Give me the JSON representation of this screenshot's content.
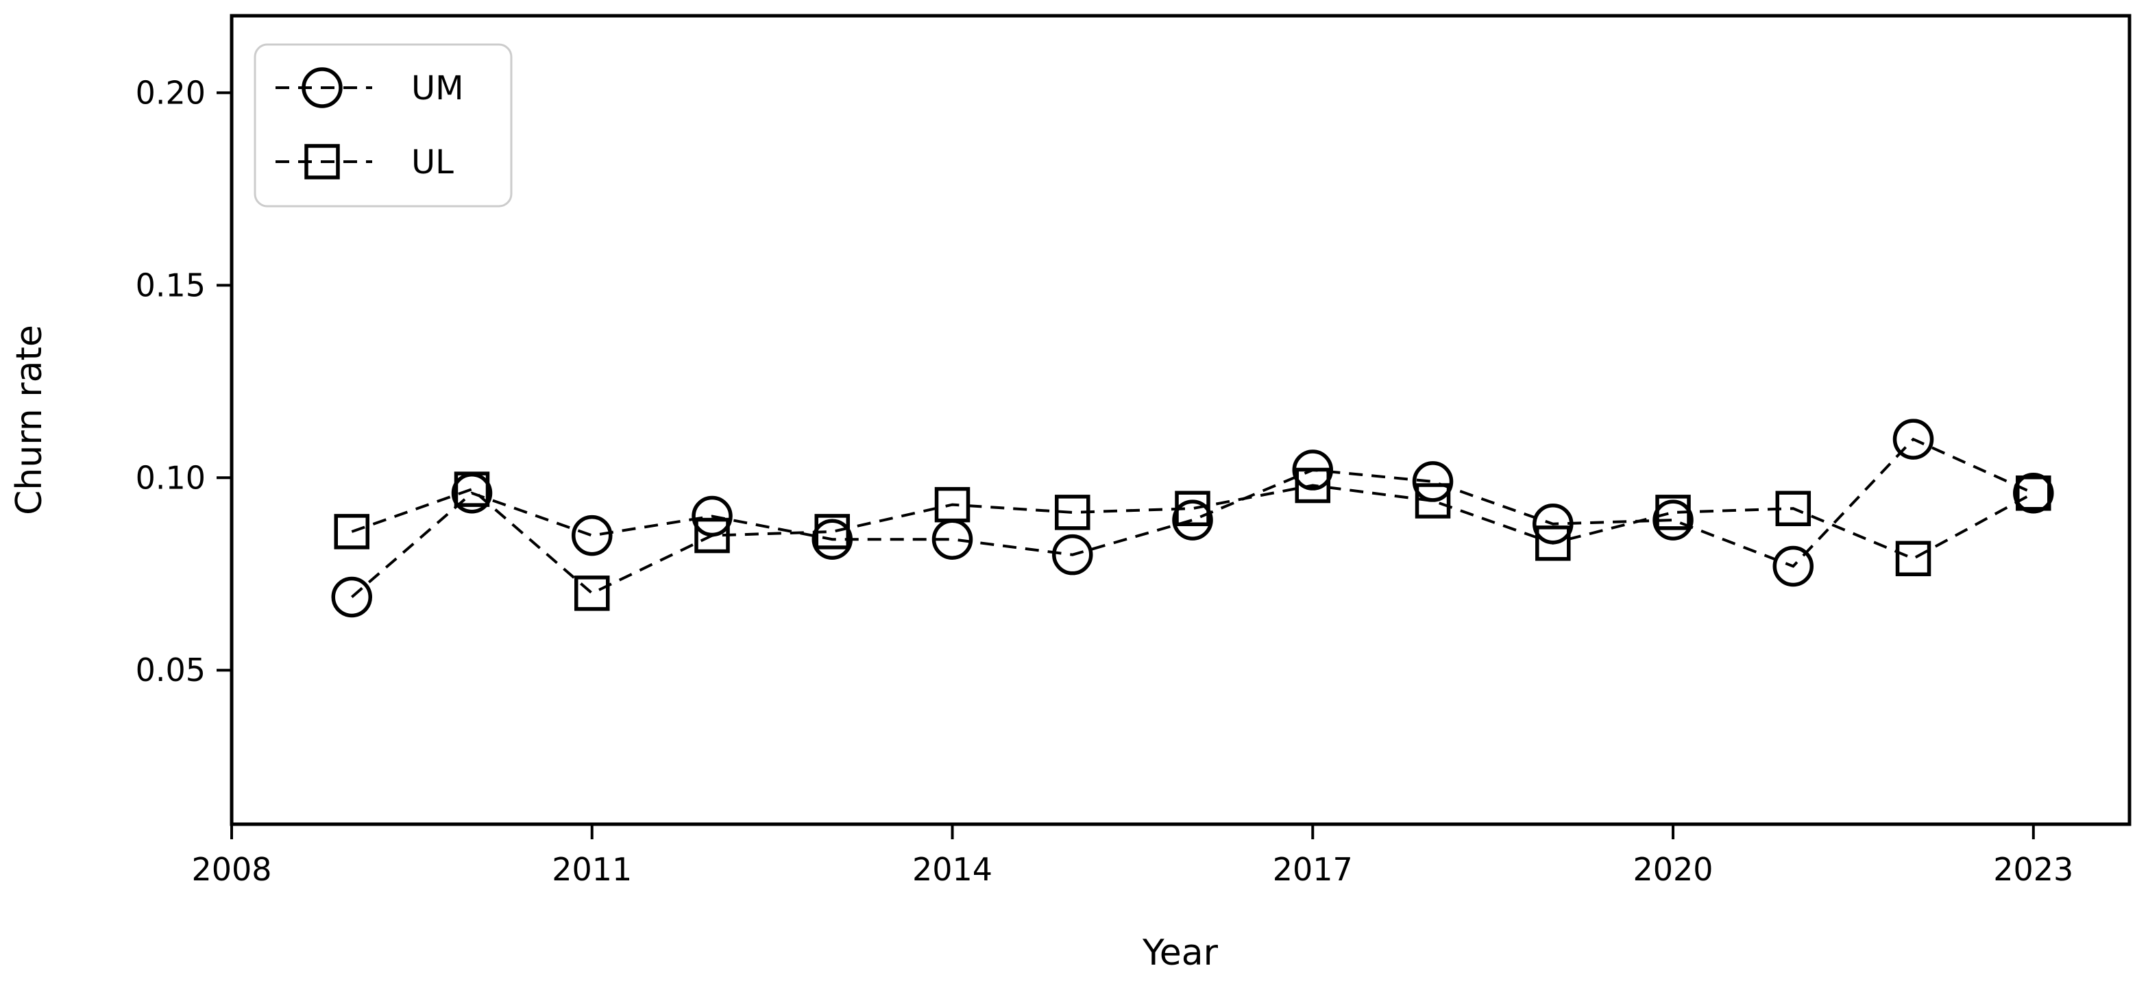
{
  "figure": {
    "background": "#ffffff",
    "frame_color": "#000000",
    "series_color": "#000000",
    "legend_border_color": "#cccccc"
  },
  "chart_data": {
    "type": "line",
    "title": "",
    "xlabel": "Year",
    "ylabel": "Churn rate",
    "x": [
      2009,
      2010,
      2011,
      2012,
      2013,
      2014,
      2015,
      2016,
      2017,
      2018,
      2019,
      2020,
      2021,
      2022,
      2023
    ],
    "series": [
      {
        "name": "UM",
        "marker": "circle",
        "linestyle": "dashed",
        "color": "#000000",
        "values": [
          0.069,
          0.096,
          0.085,
          0.09,
          0.084,
          0.084,
          0.08,
          0.089,
          0.102,
          0.099,
          0.088,
          0.089,
          0.077,
          0.11,
          0.096
        ]
      },
      {
        "name": "UL",
        "marker": "square",
        "linestyle": "dashed",
        "color": "#000000",
        "values": [
          0.086,
          0.097,
          0.07,
          0.085,
          0.086,
          0.093,
          0.091,
          0.092,
          0.098,
          0.094,
          0.083,
          0.091,
          0.092,
          0.079,
          0.096
        ]
      }
    ],
    "xticks": [
      2008,
      2011,
      2014,
      2017,
      2020,
      2023
    ],
    "xtick_labels": [
      "2008",
      "2011",
      "2014",
      "2017",
      "2020",
      "2023"
    ],
    "yticks": [
      0.05,
      0.1,
      0.15,
      0.2
    ],
    "ytick_labels": [
      "0.05",
      "0.10",
      "0.15",
      "0.20"
    ],
    "xlim": [
      2008,
      2023.8
    ],
    "ylim": [
      0.01,
      0.22
    ],
    "grid": false,
    "legend_position": "upper left",
    "legend_entries": [
      "UM",
      "UL"
    ]
  }
}
